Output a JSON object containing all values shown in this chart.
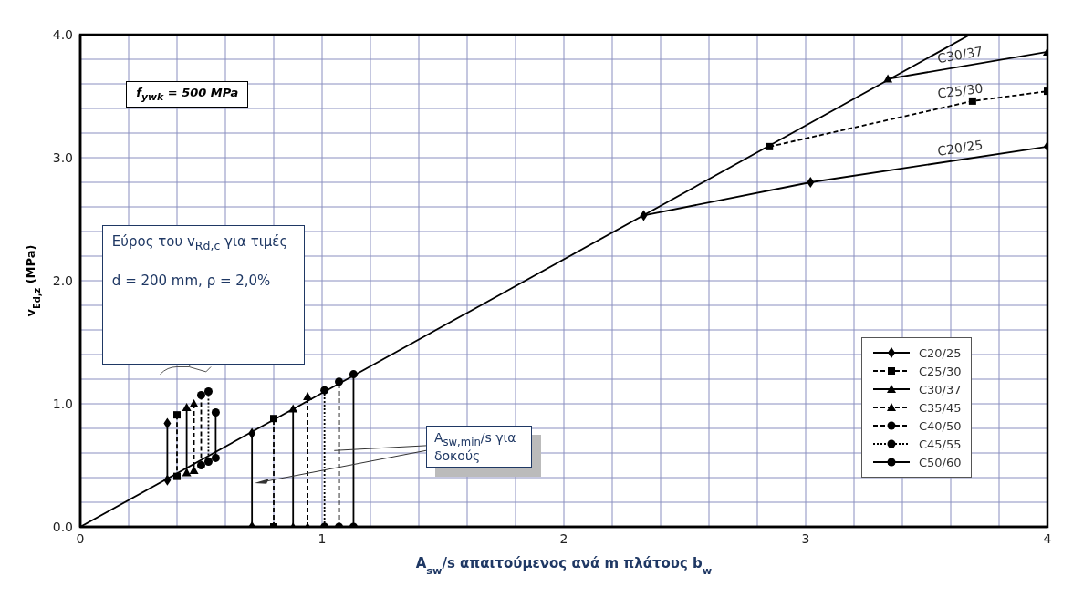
{
  "chart_data": {
    "type": "line",
    "xlabel": "A$_{sw}$/s απαιτούμενος ανά m πλάτους b$_{w}$",
    "ylabel": "v$_{Ed,z}$ (MPa)",
    "xlim": [
      0,
      4
    ],
    "ylim": [
      0,
      4
    ],
    "xticks": [
      {
        "value": 0,
        "label": "0"
      },
      {
        "value": 0.2,
        "label": null
      },
      {
        "value": 0.4,
        "label": null
      },
      {
        "value": 0.6,
        "label": null
      },
      {
        "value": 0.8,
        "label": null
      },
      {
        "value": 1,
        "label": "1"
      },
      {
        "value": 1.2,
        "label": null
      },
      {
        "value": 1.4,
        "label": null
      },
      {
        "value": 1.6,
        "label": null
      },
      {
        "value": 1.8,
        "label": null
      },
      {
        "value": 2,
        "label": "2"
      },
      {
        "value": 2.2,
        "label": null
      },
      {
        "value": 2.4,
        "label": null
      },
      {
        "value": 2.6,
        "label": null
      },
      {
        "value": 2.8,
        "label": null
      },
      {
        "value": 3,
        "label": "3"
      },
      {
        "value": 3.2,
        "label": null
      },
      {
        "value": 3.4,
        "label": null
      },
      {
        "value": 3.6,
        "label": null
      },
      {
        "value": 3.8,
        "label": null
      },
      {
        "value": 4,
        "label": "4"
      }
    ],
    "yticks": [
      {
        "value": 0,
        "label": "0.0"
      },
      {
        "value": 0.2,
        "label": null
      },
      {
        "value": 0.4,
        "label": null
      },
      {
        "value": 0.6,
        "label": null
      },
      {
        "value": 0.8,
        "label": null
      },
      {
        "value": 1,
        "label": "1.0"
      },
      {
        "value": 1.2,
        "label": null
      },
      {
        "value": 1.4,
        "label": null
      },
      {
        "value": 1.6,
        "label": null
      },
      {
        "value": 1.8,
        "label": null
      },
      {
        "value": 2,
        "label": "2.0"
      },
      {
        "value": 2.2,
        "label": null
      },
      {
        "value": 2.4,
        "label": null
      },
      {
        "value": 2.6,
        "label": null
      },
      {
        "value": 2.8,
        "label": null
      },
      {
        "value": 3,
        "label": "3.0"
      },
      {
        "value": 3.2,
        "label": null
      },
      {
        "value": 3.4,
        "label": null
      },
      {
        "value": 3.6,
        "label": null
      },
      {
        "value": 3.8,
        "label": null
      },
      {
        "value": 4,
        "label": "4.0"
      }
    ],
    "grid": true,
    "legend": "bottom right",
    "annotations": [
      "f$_{ywk}$ = 500 MPa",
      "Εύρος του v$_{Rd,c}$ για τιμές",
      "d = 200 mm, ρ = 2,0%",
      "A$_{sw,min}$/s για δοκούς"
    ],
    "series": [
      {
        "color": "#000000",
        "marker": "none",
        "line_style": "solid",
        "x": [
          0,
          3.68
        ],
        "values": [
          0,
          4.0
        ]
      },
      {
        "name": "C20/25",
        "color": "#000000",
        "marker": "diamond",
        "line_style": "solid",
        "x": [
          0.36,
          0.36,
          null,
          0.71,
          0.71,
          null,
          2.33,
          3.02,
          4.0
        ],
        "values": [
          0.84,
          0.38,
          null,
          0,
          0.76,
          null,
          2.53,
          2.8,
          3.09
        ]
      },
      {
        "name": "C25/30",
        "color": "#000000",
        "marker": "square",
        "line_style": "dashed",
        "x": [
          0.4,
          0.4,
          null,
          0.8,
          0.8,
          null,
          2.85,
          3.69,
          4.0
        ],
        "values": [
          0.91,
          0.41,
          null,
          0,
          0.88,
          null,
          3.09,
          3.46,
          3.54
        ]
      },
      {
        "name": "C30/37",
        "color": "#000000",
        "marker": "triangle",
        "line_style": "solid",
        "x": [
          0.44,
          0.44,
          null,
          0.88,
          0.88,
          null,
          3.34,
          4.0
        ],
        "values": [
          0.97,
          0.44,
          null,
          0,
          0.96,
          null,
          3.64,
          3.86
        ]
      },
      {
        "name": "C35/45",
        "color": "#000000",
        "marker": "triangle",
        "line_style": "dashed",
        "x": [
          0.47,
          0.47,
          null,
          0.94,
          0.94
        ],
        "values": [
          1.0,
          0.46,
          null,
          0,
          1.06
        ]
      },
      {
        "name": "C40/50",
        "color": "#000000",
        "marker": "circle",
        "line_style": "dashed",
        "x": [
          0.5,
          0.5,
          null,
          1.07,
          1.07
        ],
        "values": [
          1.07,
          0.5,
          null,
          0,
          1.18
        ]
      },
      {
        "name": "C45/55",
        "color": "#000000",
        "marker": "circle",
        "line_style": "dotted",
        "x": [
          0.53,
          0.53,
          null,
          1.01,
          1.01
        ],
        "values": [
          1.1,
          0.53,
          null,
          0,
          1.11
        ]
      },
      {
        "name": "C50/60",
        "color": "#000000",
        "marker": "circle",
        "line_style": "solid",
        "x": [
          0.56,
          0.56,
          null,
          1.13,
          1.13
        ],
        "values": [
          0.93,
          0.56,
          null,
          0,
          1.24
        ]
      }
    ]
  }
}
